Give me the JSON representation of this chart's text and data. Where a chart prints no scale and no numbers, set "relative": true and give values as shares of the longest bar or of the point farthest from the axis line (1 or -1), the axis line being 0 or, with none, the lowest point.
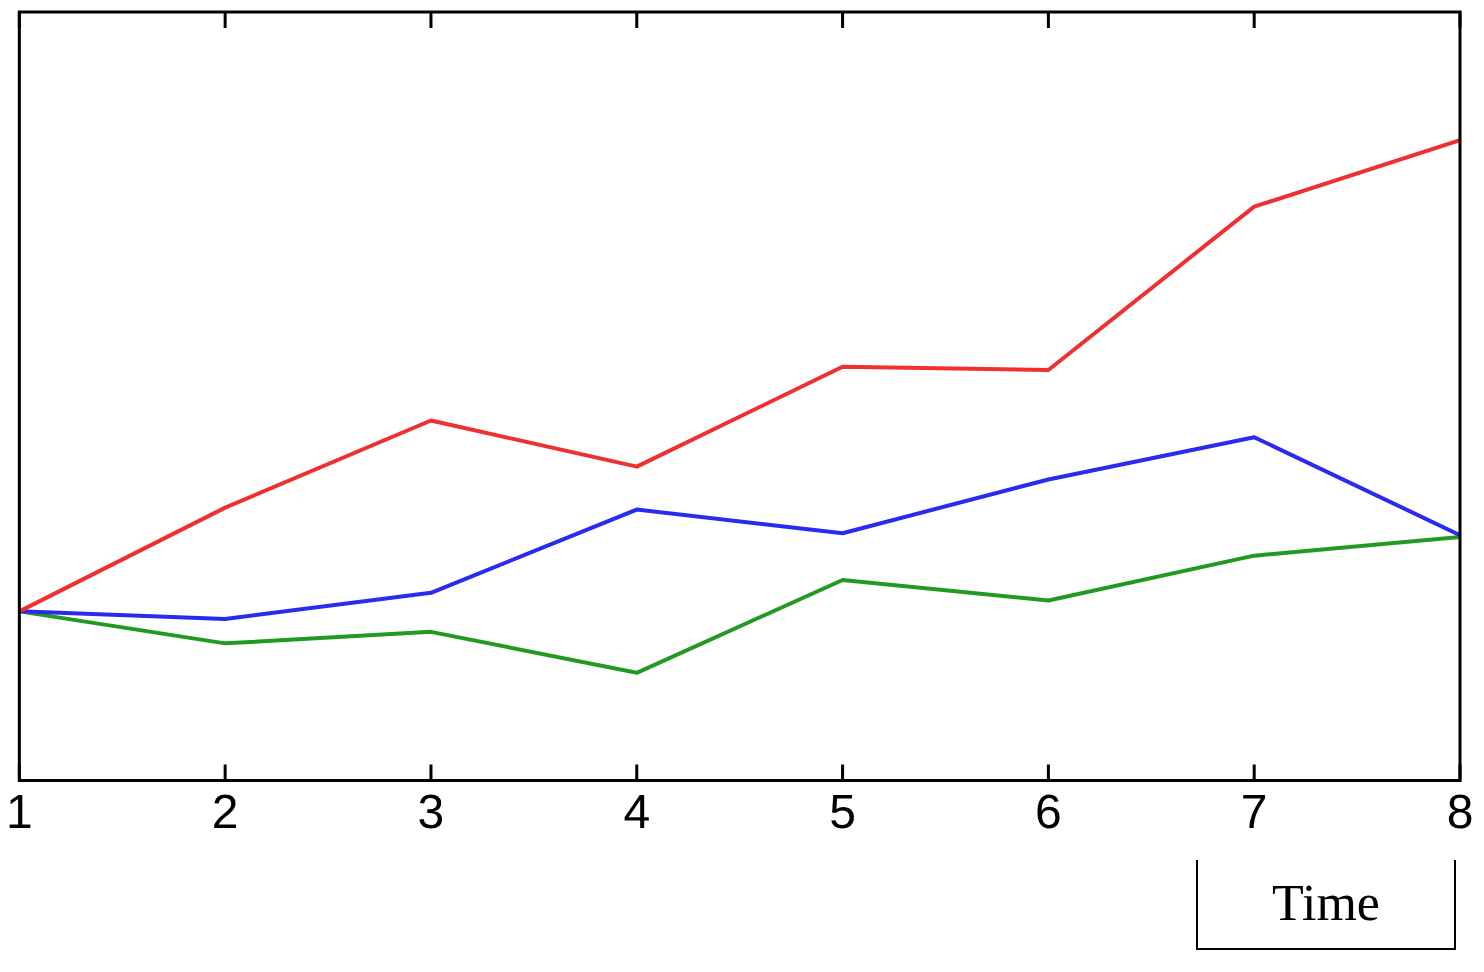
{
  "chart_data": {
    "type": "line",
    "xlabel": "Time",
    "x": [
      1,
      2,
      3,
      4,
      5,
      6,
      7,
      8
    ],
    "xlim": [
      1,
      8
    ],
    "xticks": [
      1,
      2,
      3,
      4,
      5,
      6,
      7,
      8
    ],
    "relative": true,
    "grid": false,
    "legend": false,
    "tick_labels": "x",
    "marker": "none",
    "line_style": "solid",
    "series": [
      {
        "color": "#f03030",
        "values": [
          0.264,
          0.426,
          0.562,
          0.49,
          0.646,
          0.641,
          0.896,
          1
        ]
      },
      {
        "color": "#2a2af0",
        "values": [
          0.264,
          0.252,
          0.293,
          0.423,
          0.386,
          0.47,
          0.536,
          0.383
        ]
      },
      {
        "color": "#229a22",
        "values": [
          0.264,
          0.214,
          0.232,
          0.168,
          0.313,
          0.281,
          0.351,
          0.38
        ]
      }
    ]
  }
}
